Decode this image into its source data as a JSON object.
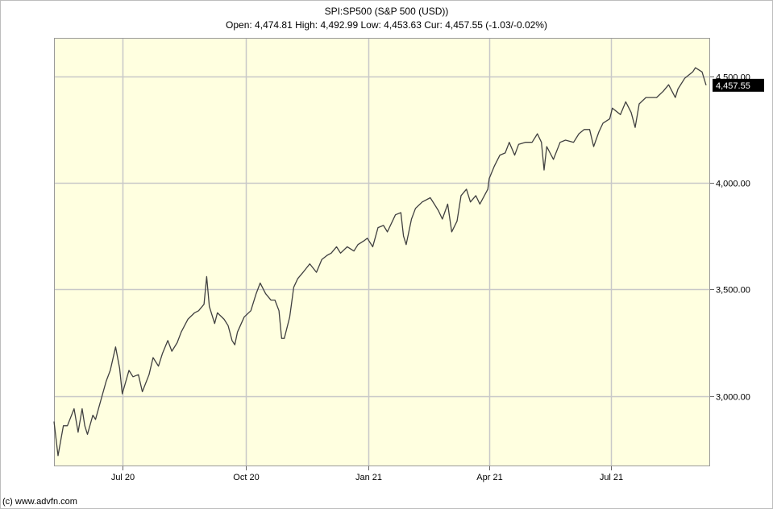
{
  "header": {
    "title": "SPI:SP500 (S&P 500 (USD))",
    "subtitle": "Open: 4,474.81 High: 4,492.99 Low: 4,453.63 Cur: 4,457.55 (-1.03/-0.02%)"
  },
  "footer": {
    "copyright": "(c) www.advfn.com"
  },
  "colors": {
    "plot_bg": "#ffffe0",
    "grid": "#c8c8c8",
    "line": "#404040",
    "badge_bg": "#000000",
    "badge_text": "#ffffff"
  },
  "chart_data": {
    "type": "line",
    "title": "SPI:SP500 (S&P 500 (USD))",
    "ylabel": "",
    "xlabel": "",
    "ylim": [
      2670,
      4680
    ],
    "xlim": [
      "2020-05-11",
      "2021-09-13"
    ],
    "yticks": [
      {
        "value": 3000,
        "label": "3,000.00"
      },
      {
        "value": 3500,
        "label": "3,500.00"
      },
      {
        "value": 4000,
        "label": "4,000.00"
      },
      {
        "value": 4500,
        "label": "4,500.00"
      }
    ],
    "xticks": [
      {
        "date": "2020-07-01",
        "label": "Jul 20"
      },
      {
        "date": "2020-10-01",
        "label": "Oct 20"
      },
      {
        "date": "2021-01-01",
        "label": "Jan 21"
      },
      {
        "date": "2021-04-01",
        "label": "Apr 21"
      },
      {
        "date": "2021-07-01",
        "label": "Jul 21"
      }
    ],
    "grid": true,
    "current": {
      "value": 4457.55,
      "label": "4,457.55"
    },
    "series": [
      {
        "name": "",
        "points": [
          [
            "2020-05-11",
            2880
          ],
          [
            "2020-05-14",
            2720
          ],
          [
            "2020-05-18",
            2860
          ],
          [
            "2020-05-21",
            2860
          ],
          [
            "2020-05-26",
            2940
          ],
          [
            "2020-05-29",
            2830
          ],
          [
            "2020-06-01",
            2940
          ],
          [
            "2020-06-03",
            2860
          ],
          [
            "2020-06-05",
            2820
          ],
          [
            "2020-06-09",
            2910
          ],
          [
            "2020-06-11",
            2890
          ],
          [
            "2020-06-15",
            2980
          ],
          [
            "2020-06-19",
            3070
          ],
          [
            "2020-06-22",
            3120
          ],
          [
            "2020-06-26",
            3230
          ],
          [
            "2020-06-29",
            3130
          ],
          [
            "2020-07-01",
            3010
          ],
          [
            "2020-07-06",
            3120
          ],
          [
            "2020-07-09",
            3090
          ],
          [
            "2020-07-13",
            3100
          ],
          [
            "2020-07-16",
            3020
          ],
          [
            "2020-07-21",
            3100
          ],
          [
            "2020-07-24",
            3180
          ],
          [
            "2020-07-28",
            3140
          ],
          [
            "2020-07-31",
            3200
          ],
          [
            "2020-08-04",
            3260
          ],
          [
            "2020-08-07",
            3210
          ],
          [
            "2020-08-11",
            3250
          ],
          [
            "2020-08-14",
            3300
          ],
          [
            "2020-08-19",
            3360
          ],
          [
            "2020-08-24",
            3390
          ],
          [
            "2020-08-27",
            3400
          ],
          [
            "2020-08-31",
            3430
          ],
          [
            "2020-09-02",
            3560
          ],
          [
            "2020-09-04",
            3420
          ],
          [
            "2020-09-08",
            3340
          ],
          [
            "2020-09-10",
            3390
          ],
          [
            "2020-09-15",
            3360
          ],
          [
            "2020-09-18",
            3330
          ],
          [
            "2020-09-21",
            3260
          ],
          [
            "2020-09-23",
            3240
          ],
          [
            "2020-09-25",
            3300
          ],
          [
            "2020-09-30",
            3370
          ],
          [
            "2020-10-05",
            3400
          ],
          [
            "2020-10-09",
            3480
          ],
          [
            "2020-10-12",
            3530
          ],
          [
            "2020-10-16",
            3480
          ],
          [
            "2020-10-20",
            3450
          ],
          [
            "2020-10-23",
            3450
          ],
          [
            "2020-10-26",
            3400
          ],
          [
            "2020-10-28",
            3270
          ],
          [
            "2020-10-30",
            3270
          ],
          [
            "2020-11-03",
            3370
          ],
          [
            "2020-11-06",
            3510
          ],
          [
            "2020-11-09",
            3550
          ],
          [
            "2020-11-13",
            3580
          ],
          [
            "2020-11-18",
            3620
          ],
          [
            "2020-11-23",
            3580
          ],
          [
            "2020-11-27",
            3640
          ],
          [
            "2020-12-01",
            3660
          ],
          [
            "2020-12-04",
            3670
          ],
          [
            "2020-12-08",
            3700
          ],
          [
            "2020-12-11",
            3670
          ],
          [
            "2020-12-16",
            3700
          ],
          [
            "2020-12-21",
            3680
          ],
          [
            "2020-12-24",
            3710
          ],
          [
            "2020-12-29",
            3730
          ],
          [
            "2020-12-31",
            3740
          ],
          [
            "2021-01-04",
            3700
          ],
          [
            "2021-01-08",
            3790
          ],
          [
            "2021-01-12",
            3800
          ],
          [
            "2021-01-15",
            3770
          ],
          [
            "2021-01-21",
            3850
          ],
          [
            "2021-01-25",
            3860
          ],
          [
            "2021-01-27",
            3750
          ],
          [
            "2021-01-29",
            3710
          ],
          [
            "2021-02-02",
            3830
          ],
          [
            "2021-02-05",
            3880
          ],
          [
            "2021-02-10",
            3910
          ],
          [
            "2021-02-16",
            3930
          ],
          [
            "2021-02-19",
            3900
          ],
          [
            "2021-02-22",
            3870
          ],
          [
            "2021-02-25",
            3830
          ],
          [
            "2021-03-01",
            3900
          ],
          [
            "2021-03-04",
            3770
          ],
          [
            "2021-03-08",
            3820
          ],
          [
            "2021-03-11",
            3940
          ],
          [
            "2021-03-15",
            3970
          ],
          [
            "2021-03-18",
            3910
          ],
          [
            "2021-03-22",
            3940
          ],
          [
            "2021-03-25",
            3900
          ],
          [
            "2021-03-31",
            3970
          ],
          [
            "2021-04-01",
            4020
          ],
          [
            "2021-04-05",
            4080
          ],
          [
            "2021-04-09",
            4130
          ],
          [
            "2021-04-13",
            4140
          ],
          [
            "2021-04-16",
            4190
          ],
          [
            "2021-04-20",
            4130
          ],
          [
            "2021-04-23",
            4180
          ],
          [
            "2021-04-28",
            4190
          ],
          [
            "2021-05-03",
            4190
          ],
          [
            "2021-05-07",
            4230
          ],
          [
            "2021-05-10",
            4190
          ],
          [
            "2021-05-12",
            4060
          ],
          [
            "2021-05-14",
            4170
          ],
          [
            "2021-05-19",
            4110
          ],
          [
            "2021-05-24",
            4190
          ],
          [
            "2021-05-28",
            4200
          ],
          [
            "2021-06-03",
            4190
          ],
          [
            "2021-06-07",
            4230
          ],
          [
            "2021-06-11",
            4250
          ],
          [
            "2021-06-15",
            4250
          ],
          [
            "2021-06-18",
            4170
          ],
          [
            "2021-06-22",
            4240
          ],
          [
            "2021-06-25",
            4280
          ],
          [
            "2021-06-30",
            4300
          ],
          [
            "2021-07-02",
            4350
          ],
          [
            "2021-07-08",
            4320
          ],
          [
            "2021-07-12",
            4380
          ],
          [
            "2021-07-16",
            4330
          ],
          [
            "2021-07-19",
            4260
          ],
          [
            "2021-07-22",
            4370
          ],
          [
            "2021-07-27",
            4400
          ],
          [
            "2021-07-30",
            4400
          ],
          [
            "2021-08-04",
            4400
          ],
          [
            "2021-08-09",
            4430
          ],
          [
            "2021-08-13",
            4460
          ],
          [
            "2021-08-18",
            4400
          ],
          [
            "2021-08-20",
            4440
          ],
          [
            "2021-08-25",
            4490
          ],
          [
            "2021-08-31",
            4520
          ],
          [
            "2021-09-02",
            4540
          ],
          [
            "2021-09-07",
            4520
          ],
          [
            "2021-09-10",
            4458
          ]
        ]
      }
    ]
  }
}
